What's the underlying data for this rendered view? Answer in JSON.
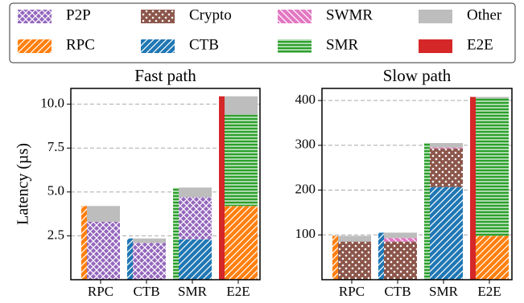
{
  "legend": [
    {
      "name": "P2P",
      "color": "#9467bd",
      "pattern": "crosshatch"
    },
    {
      "name": "Crypto",
      "color": "#8c564b",
      "pattern": "dots"
    },
    {
      "name": "SWMR",
      "color": "#e377c2",
      "pattern": "backslash"
    },
    {
      "name": "Other",
      "color": "#bdbdbd",
      "pattern": "none"
    },
    {
      "name": "RPC",
      "color": "#ff7f0e",
      "pattern": "slash"
    },
    {
      "name": "CTB",
      "color": "#1f77b4",
      "pattern": "slash"
    },
    {
      "name": "SMR",
      "color": "#2ca02c",
      "pattern": "hlines"
    },
    {
      "name": "E2E",
      "color": "#d62728",
      "pattern": "none"
    }
  ],
  "chart_data": [
    {
      "type": "bar",
      "stacked": true,
      "title": "Fast path",
      "ylabel": "Latency (µs)",
      "categories": [
        "RPC",
        "CTB",
        "SMR",
        "E2E"
      ],
      "totals": [
        4.2,
        2.35,
        5.25,
        10.45
      ],
      "series": [
        {
          "name": "RPC",
          "color": "#ff7f0e",
          "values": [
            null,
            null,
            null,
            4.2
          ]
        },
        {
          "name": "CTB",
          "color": "#1f77b4",
          "values": [
            null,
            null,
            2.3,
            null
          ]
        },
        {
          "name": "SMR",
          "color": "#2ca02c",
          "values": [
            null,
            null,
            null,
            5.2
          ]
        },
        {
          "name": "P2P",
          "color": "#9467bd",
          "values": [
            3.3,
            2.1,
            2.4,
            null
          ]
        },
        {
          "name": "Other",
          "color": "#bdbdbd",
          "values": [
            0.9,
            0.25,
            0.55,
            1.05
          ]
        }
      ],
      "ylim": [
        0,
        10.9
      ],
      "yticks": [
        2.5,
        {
          "value": 5,
          "label": "5.0"
        },
        7.5,
        {
          "value": 10,
          "label": "10.0"
        }
      ],
      "grid": true
    },
    {
      "type": "bar",
      "stacked": true,
      "title": "Slow path",
      "categories": [
        "RPC",
        "CTB",
        "SMR",
        "E2E"
      ],
      "totals": [
        98,
        105,
        305,
        408
      ],
      "series": [
        {
          "name": "RPC",
          "color": "#ff7f0e",
          "values": [
            null,
            null,
            null,
            98
          ]
        },
        {
          "name": "CTB",
          "color": "#1f77b4",
          "values": [
            null,
            null,
            207,
            null
          ]
        },
        {
          "name": "SMR",
          "color": "#2ca02c",
          "values": [
            null,
            null,
            null,
            307
          ]
        },
        {
          "name": "Crypto",
          "color": "#8c564b",
          "values": [
            85,
            85,
            86,
            null
          ]
        },
        {
          "name": "SWMR",
          "color": "#e377c2",
          "values": [
            null,
            8,
            2,
            null
          ]
        },
        {
          "name": "Other",
          "color": "#bdbdbd",
          "values": [
            13,
            12,
            10,
            3
          ]
        }
      ],
      "ylim": [
        0,
        427
      ],
      "yticks": [
        100,
        200,
        300,
        400
      ],
      "grid": true
    }
  ]
}
